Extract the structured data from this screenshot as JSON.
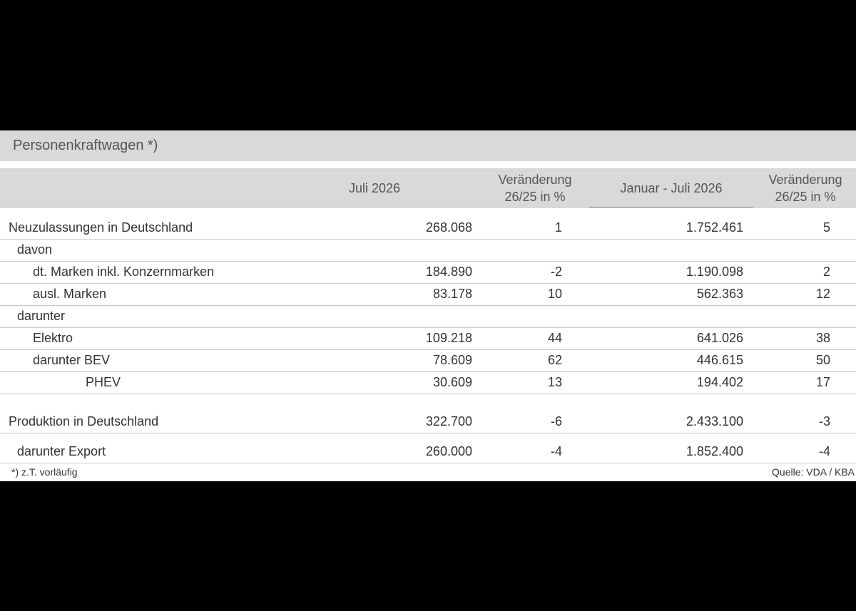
{
  "title": "Personenkraftwagen *)",
  "headers": {
    "month": "Juli 2026",
    "change1_line1": "Veränderung",
    "change1_line2": "26/25 in %",
    "ytd": "Januar - Juli 2026",
    "change2_line1": "Veränderung",
    "change2_line2": "26/25 in %"
  },
  "rows": [
    {
      "label": "Neuzulassungen in Deutschland",
      "month": "268.068",
      "change1": "1",
      "ytd": "1.752.461",
      "change2": "5"
    },
    {
      "label": "davon",
      "month": "",
      "change1": "",
      "ytd": "",
      "change2": ""
    },
    {
      "label": "dt. Marken inkl. Konzernmarken",
      "month": "184.890",
      "change1": "-2",
      "ytd": "1.190.098",
      "change2": "2"
    },
    {
      "label": "ausl. Marken",
      "month": "83.178",
      "change1": "10",
      "ytd": "562.363",
      "change2": "12"
    },
    {
      "label": "darunter",
      "month": "",
      "change1": "",
      "ytd": "",
      "change2": ""
    },
    {
      "label": "Elektro",
      "month": "109.218",
      "change1": "44",
      "ytd": "641.026",
      "change2": "38"
    },
    {
      "label": "darunter BEV",
      "month": "78.609",
      "change1": "62",
      "ytd": "446.615",
      "change2": "50"
    },
    {
      "label": "PHEV",
      "month": "30.609",
      "change1": "13",
      "ytd": "194.402",
      "change2": "17"
    },
    {
      "label": "Produktion in Deutschland",
      "month": "322.700",
      "change1": "-6",
      "ytd": "2.433.100",
      "change2": "-3"
    },
    {
      "label": "darunter Export",
      "month": "260.000",
      "change1": "-4",
      "ytd": "1.852.400",
      "change2": "-4"
    }
  ],
  "footer": {
    "note": "*) z.T. vorläufig",
    "source": "Quelle: VDA / KBA"
  }
}
